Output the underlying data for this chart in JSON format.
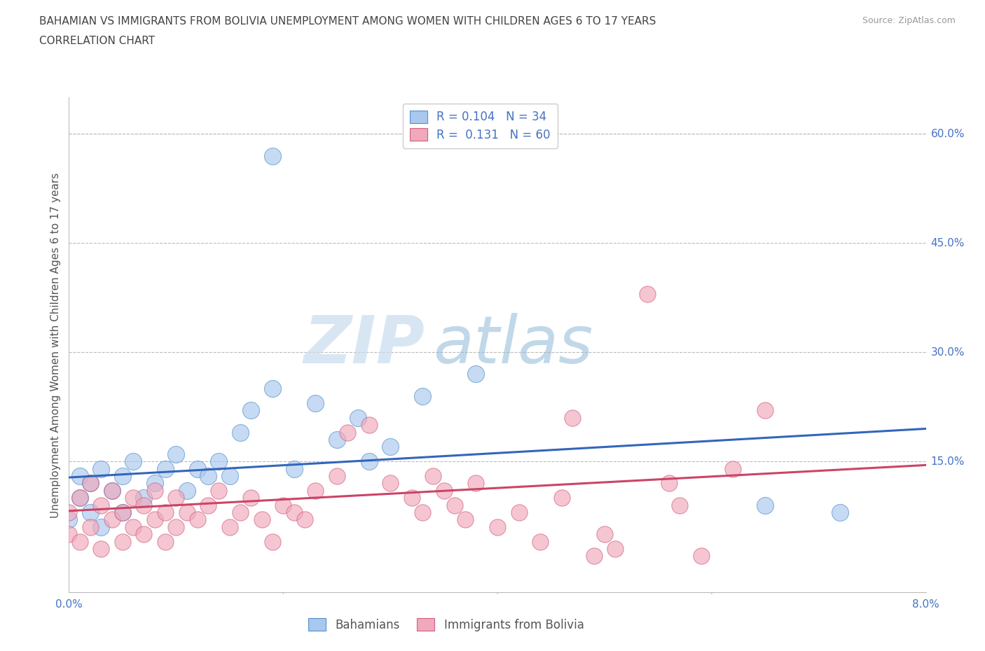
{
  "title_line1": "BAHAMIAN VS IMMIGRANTS FROM BOLIVIA UNEMPLOYMENT AMONG WOMEN WITH CHILDREN AGES 6 TO 17 YEARS",
  "title_line2": "CORRELATION CHART",
  "source": "Source: ZipAtlas.com",
  "ylabel": "Unemployment Among Women with Children Ages 6 to 17 years",
  "xlim": [
    0.0,
    0.08
  ],
  "ylim": [
    -0.03,
    0.65
  ],
  "xticks": [
    0.0,
    0.02,
    0.04,
    0.06,
    0.08
  ],
  "xtick_labels": [
    "0.0%",
    "",
    "",
    "",
    "8.0%"
  ],
  "ytick_labels_right": [
    "60.0%",
    "45.0%",
    "30.0%",
    "15.0%"
  ],
  "yticks_right": [
    0.6,
    0.45,
    0.3,
    0.15
  ],
  "watermark_zip": "ZIP",
  "watermark_atlas": "atlas",
  "legend_label1": "R = 0.104   N = 34",
  "legend_label2": "R =  0.131   N = 60",
  "color_blue": "#A8C8EE",
  "color_pink": "#F0A8BB",
  "border_blue": "#5590CC",
  "border_pink": "#D06080",
  "line_blue": "#3366BB",
  "line_pink": "#CC4466",
  "label_blue": "Bahamians",
  "label_pink": "Immigrants from Bolivia",
  "blue_scatter_x": [
    0.0,
    0.001,
    0.001,
    0.002,
    0.002,
    0.003,
    0.003,
    0.004,
    0.005,
    0.005,
    0.006,
    0.007,
    0.008,
    0.009,
    0.01,
    0.011,
    0.012,
    0.013,
    0.014,
    0.015,
    0.016,
    0.017,
    0.019,
    0.021,
    0.023,
    0.025,
    0.027,
    0.028,
    0.03,
    0.033,
    0.038,
    0.019,
    0.065,
    0.072
  ],
  "blue_scatter_y": [
    0.07,
    0.13,
    0.1,
    0.12,
    0.08,
    0.14,
    0.06,
    0.11,
    0.13,
    0.08,
    0.15,
    0.1,
    0.12,
    0.14,
    0.16,
    0.11,
    0.14,
    0.13,
    0.15,
    0.13,
    0.19,
    0.22,
    0.25,
    0.14,
    0.23,
    0.18,
    0.21,
    0.15,
    0.17,
    0.24,
    0.27,
    0.57,
    0.09,
    0.08
  ],
  "pink_scatter_x": [
    0.0,
    0.0,
    0.001,
    0.001,
    0.002,
    0.002,
    0.003,
    0.003,
    0.004,
    0.004,
    0.005,
    0.005,
    0.006,
    0.006,
    0.007,
    0.007,
    0.008,
    0.008,
    0.009,
    0.009,
    0.01,
    0.01,
    0.011,
    0.012,
    0.013,
    0.014,
    0.015,
    0.016,
    0.017,
    0.018,
    0.019,
    0.02,
    0.021,
    0.022,
    0.023,
    0.025,
    0.026,
    0.028,
    0.03,
    0.032,
    0.033,
    0.034,
    0.035,
    0.036,
    0.037,
    0.038,
    0.04,
    0.042,
    0.044,
    0.046,
    0.047,
    0.049,
    0.05,
    0.051,
    0.054,
    0.056,
    0.057,
    0.059,
    0.062,
    0.065
  ],
  "pink_scatter_y": [
    0.05,
    0.08,
    0.04,
    0.1,
    0.06,
    0.12,
    0.03,
    0.09,
    0.07,
    0.11,
    0.04,
    0.08,
    0.06,
    0.1,
    0.05,
    0.09,
    0.07,
    0.11,
    0.04,
    0.08,
    0.06,
    0.1,
    0.08,
    0.07,
    0.09,
    0.11,
    0.06,
    0.08,
    0.1,
    0.07,
    0.04,
    0.09,
    0.08,
    0.07,
    0.11,
    0.13,
    0.19,
    0.2,
    0.12,
    0.1,
    0.08,
    0.13,
    0.11,
    0.09,
    0.07,
    0.12,
    0.06,
    0.08,
    0.04,
    0.1,
    0.21,
    0.02,
    0.05,
    0.03,
    0.38,
    0.12,
    0.09,
    0.02,
    0.14,
    0.22
  ],
  "blue_line_x": [
    0.0,
    0.08
  ],
  "blue_line_y": [
    0.128,
    0.195
  ],
  "pink_line_x": [
    0.0,
    0.08
  ],
  "pink_line_y": [
    0.082,
    0.145
  ],
  "grid_color": "#BBBBBB",
  "bg_color": "#FFFFFF",
  "tick_color": "#4472C4",
  "label_color": "#555555"
}
